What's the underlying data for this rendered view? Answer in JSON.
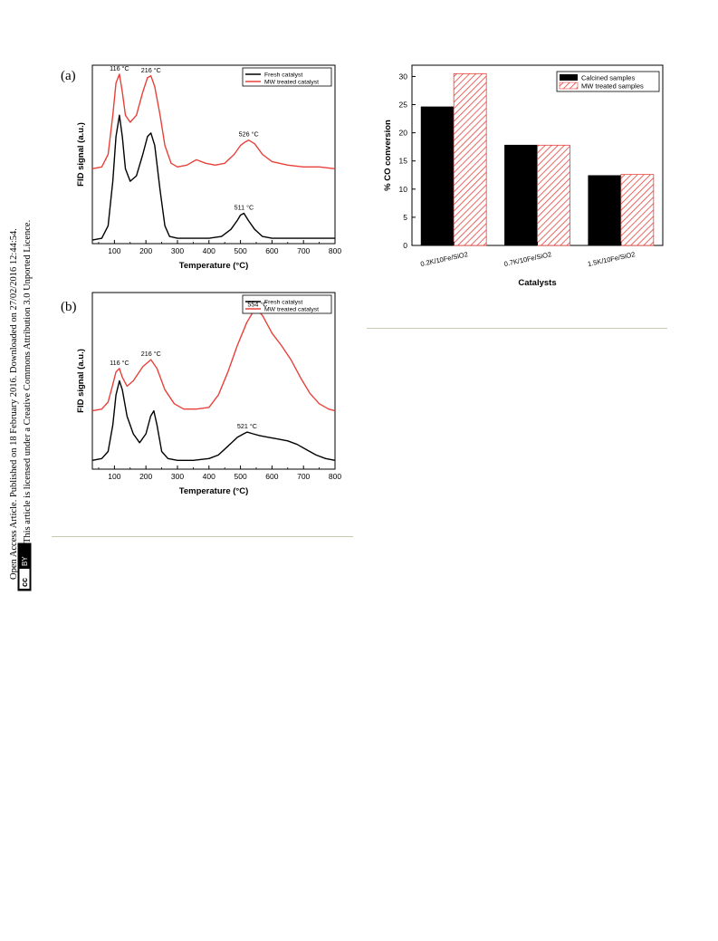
{
  "sidebar": {
    "line1": "Open Access Article. Published on 18 February 2016. Downloaded on 27/02/2016 12:44:54.",
    "line2": "This article is licensed under a Creative Commons Attribution 3.0 Unported Licence.",
    "badge_cc": "cc",
    "badge_by": "BY"
  },
  "figures": {
    "tpr_a": {
      "panel_label": "(a)",
      "ylabel": "FID signal (a.u.)",
      "xlabel": "Temperature (°C)",
      "legend": [
        "Fresh catalyst",
        "MW treated catalyst"
      ],
      "xticks": [
        "100",
        "200",
        "300",
        "400",
        "500",
        "600",
        "700",
        "800"
      ],
      "annotations": [
        "116 °C",
        "216 °C",
        "526 °C",
        "511 °C"
      ],
      "colors": {
        "fresh": "#000000",
        "mw": "#e8413a"
      }
    },
    "tpr_b": {
      "panel_label": "(b)",
      "ylabel": "FID signal (a.u.)",
      "xlabel": "Temperature (°C)",
      "legend": [
        "Fresh catalyst",
        "MW treated catalyst"
      ],
      "xticks": [
        "100",
        "200",
        "300",
        "400",
        "500",
        "600",
        "700",
        "800"
      ],
      "annotations": [
        "116 °C",
        "216 °C",
        "554 °C",
        "521 °C"
      ],
      "colors": {
        "fresh": "#000000",
        "mw": "#e8413a"
      }
    },
    "co_bar": {
      "ylabel": "% CO conversion",
      "xlabel": "Catalysts",
      "legend": [
        "Calcined samples",
        "MW treated samples"
      ],
      "yticks": [
        "0",
        "5",
        "10",
        "15",
        "20",
        "25",
        "30"
      ],
      "colors": {
        "calcined": "#000000",
        "mw": "#e8413a"
      }
    }
  },
  "chart_data": [
    {
      "type": "line",
      "panel": "(a)",
      "xlabel": "Temperature (°C)",
      "ylabel": "FID signal (a.u.)",
      "xlim": [
        30,
        800
      ],
      "ylim": [
        0,
        1
      ],
      "grid": false,
      "legend_position": "top-right",
      "series": [
        {
          "name": "Fresh catalyst",
          "x": [
            30,
            60,
            80,
            95,
            105,
            116,
            125,
            135,
            150,
            170,
            190,
            205,
            216,
            228,
            245,
            260,
            275,
            300,
            350,
            400,
            440,
            470,
            490,
            500,
            511,
            525,
            545,
            570,
            600,
            650,
            700,
            750,
            800
          ],
          "y": [
            0.02,
            0.03,
            0.1,
            0.35,
            0.6,
            0.72,
            0.6,
            0.42,
            0.35,
            0.38,
            0.5,
            0.6,
            0.62,
            0.55,
            0.3,
            0.1,
            0.04,
            0.03,
            0.03,
            0.03,
            0.04,
            0.08,
            0.13,
            0.16,
            0.17,
            0.13,
            0.08,
            0.04,
            0.03,
            0.03,
            0.03,
            0.03,
            0.03
          ]
        },
        {
          "name": "MW treated catalyst",
          "x": [
            30,
            60,
            80,
            95,
            105,
            116,
            125,
            135,
            150,
            170,
            190,
            205,
            216,
            228,
            245,
            260,
            280,
            300,
            330,
            360,
            390,
            420,
            450,
            480,
            500,
            515,
            526,
            545,
            570,
            600,
            650,
            700,
            750,
            800
          ],
          "y": [
            0.42,
            0.43,
            0.5,
            0.72,
            0.9,
            0.95,
            0.85,
            0.72,
            0.68,
            0.72,
            0.85,
            0.93,
            0.94,
            0.88,
            0.72,
            0.55,
            0.45,
            0.43,
            0.44,
            0.47,
            0.45,
            0.44,
            0.45,
            0.5,
            0.55,
            0.57,
            0.58,
            0.56,
            0.5,
            0.46,
            0.44,
            0.43,
            0.43,
            0.42
          ]
        }
      ],
      "annotations": [
        "116 °C",
        "216 °C",
        "526 °C",
        "511 °C"
      ]
    },
    {
      "type": "line",
      "panel": "(b)",
      "xlabel": "Temperature (°C)",
      "ylabel": "FID signal (a.u.)",
      "xlim": [
        30,
        800
      ],
      "ylim": [
        0,
        1
      ],
      "grid": false,
      "legend_position": "top-right",
      "series": [
        {
          "name": "Fresh catalyst",
          "x": [
            30,
            60,
            80,
            95,
            105,
            116,
            125,
            140,
            160,
            180,
            200,
            215,
            225,
            235,
            250,
            270,
            300,
            350,
            400,
            430,
            460,
            490,
            510,
            521,
            540,
            560,
            590,
            620,
            650,
            680,
            710,
            740,
            770,
            800
          ],
          "y": [
            0.05,
            0.06,
            0.1,
            0.25,
            0.42,
            0.5,
            0.45,
            0.3,
            0.2,
            0.15,
            0.2,
            0.3,
            0.33,
            0.25,
            0.1,
            0.06,
            0.05,
            0.05,
            0.06,
            0.08,
            0.13,
            0.18,
            0.2,
            0.21,
            0.2,
            0.19,
            0.18,
            0.17,
            0.16,
            0.14,
            0.11,
            0.08,
            0.06,
            0.05
          ]
        },
        {
          "name": "MW treated catalyst",
          "x": [
            30,
            60,
            80,
            95,
            105,
            116,
            125,
            140,
            160,
            190,
            216,
            235,
            260,
            290,
            320,
            360,
            400,
            430,
            460,
            490,
            520,
            540,
            554,
            570,
            600,
            630,
            660,
            690,
            720,
            750,
            780,
            800
          ],
          "y": [
            0.33,
            0.34,
            0.38,
            0.48,
            0.55,
            0.57,
            0.52,
            0.47,
            0.5,
            0.58,
            0.62,
            0.57,
            0.45,
            0.37,
            0.34,
            0.34,
            0.35,
            0.42,
            0.55,
            0.7,
            0.83,
            0.89,
            0.9,
            0.87,
            0.77,
            0.7,
            0.62,
            0.52,
            0.43,
            0.37,
            0.34,
            0.33
          ]
        }
      ],
      "annotations": [
        "116 °C",
        "216 °C",
        "554 °C",
        "521 °C"
      ]
    },
    {
      "type": "bar",
      "xlabel": "Catalysts",
      "ylabel": "% CO conversion",
      "categories": [
        "0.2K/10Fe/SiO2",
        "0.7K/10Fe/SiO2",
        "1.5K/10Fe/SiO2"
      ],
      "ylim": [
        0,
        32
      ],
      "grid": false,
      "legend_position": "top-right",
      "series": [
        {
          "name": "Calcined samples",
          "values": [
            24.6,
            17.8,
            12.4
          ]
        },
        {
          "name": "MW treated samples",
          "values": [
            30.5,
            17.8,
            12.6
          ]
        }
      ]
    }
  ]
}
